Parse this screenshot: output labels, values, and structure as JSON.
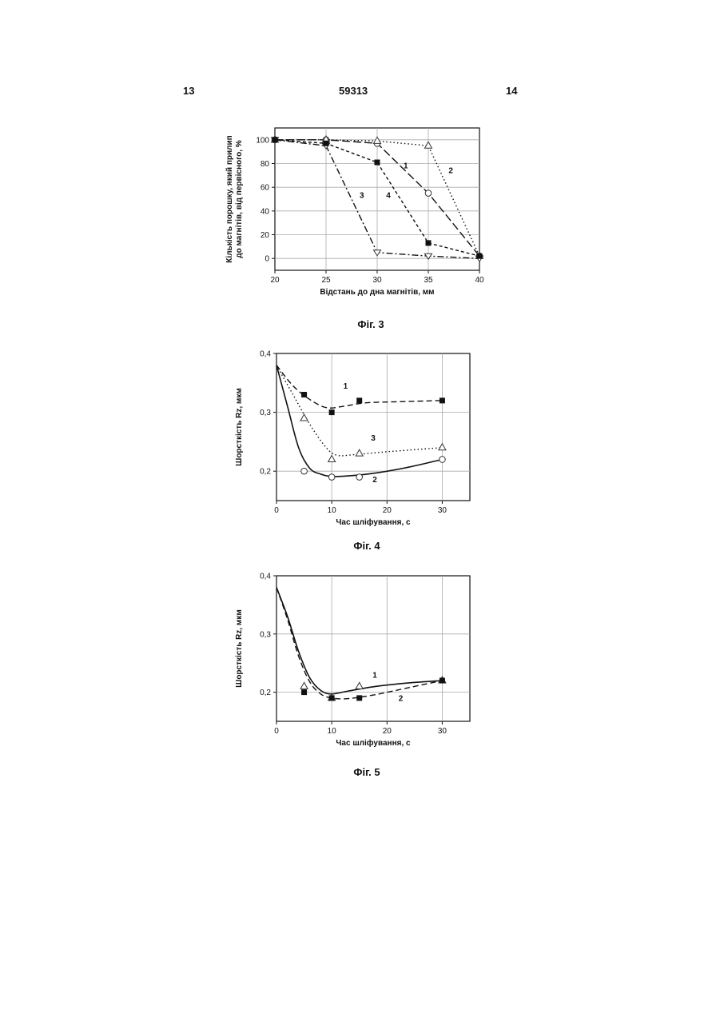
{
  "header": {
    "left": "13",
    "center": "59313",
    "right": "14"
  },
  "chart_data": [
    {
      "type": "line",
      "caption": "Фіг. 3",
      "xlabel": "Відстань до дна магнітів, мм",
      "ylabel_lines": [
        "Кількість порошку, який прилип",
        "до магнітів, від первісного, %"
      ],
      "xlim": [
        20,
        40
      ],
      "ylim": [
        -10,
        110
      ],
      "xticks": [
        20,
        25,
        30,
        35,
        40
      ],
      "yticks": [
        0,
        20,
        40,
        60,
        80,
        100
      ],
      "xtick_labels": [
        "20",
        "25",
        "30",
        "35",
        "40"
      ],
      "ytick_labels": [
        "0",
        "20",
        "40",
        "60",
        "80",
        "100"
      ],
      "grid": true,
      "series": [
        {
          "name": "1",
          "line": "M",
          "marker": "circle",
          "x": [
            20,
            25,
            30,
            35,
            40
          ],
          "y": [
            100,
            100,
            97,
            55,
            2
          ]
        },
        {
          "name": "2",
          "line": "dot",
          "marker": "triangle",
          "x": [
            20,
            25,
            30,
            35,
            40
          ],
          "y": [
            100,
            100,
            99,
            95,
            2
          ]
        },
        {
          "name": "3",
          "line": "dashdot",
          "marker": "triangle-down",
          "x": [
            20,
            25,
            30,
            35,
            40
          ],
          "y": [
            100,
            95,
            5,
            2,
            0
          ]
        },
        {
          "name": "4",
          "line": "dashdense",
          "marker": "square",
          "x": [
            20,
            25,
            30,
            35,
            40
          ],
          "y": [
            100,
            97,
            81,
            13,
            2
          ]
        }
      ],
      "curve_labels": [
        {
          "text": "1",
          "x": 32.8,
          "y": 76
        },
        {
          "text": "2",
          "x": 37.2,
          "y": 72
        },
        {
          "text": "3",
          "x": 28.5,
          "y": 51
        },
        {
          "text": "4",
          "x": 31.1,
          "y": 51
        }
      ]
    },
    {
      "type": "line",
      "caption": "Фіг. 4",
      "xlabel": "Час шліфування, с",
      "ylabel": "Шорсткість Rz, мкм",
      "xlim": [
        0,
        35
      ],
      "ylim": [
        0.15,
        0.4
      ],
      "xticks": [
        0,
        10,
        20,
        30
      ],
      "yticks": [
        0.2,
        0.3,
        0.4
      ],
      "xtick_labels": [
        "0",
        "10",
        "20",
        "30"
      ],
      "ytick_labels": [
        "0,2",
        "0,3",
        "0,4"
      ],
      "grid": true,
      "series": [
        {
          "name": "1",
          "line": "dash",
          "marker": "square",
          "points": [
            [
              5,
              0.33
            ],
            [
              10,
              0.3
            ],
            [
              15,
              0.32
            ],
            [
              30,
              0.32
            ]
          ],
          "curve": [
            [
              0,
              0.38
            ],
            [
              3,
              0.345
            ],
            [
              6,
              0.322
            ],
            [
              9,
              0.308
            ],
            [
              12,
              0.31
            ],
            [
              16,
              0.316
            ],
            [
              22,
              0.318
            ],
            [
              30,
              0.32
            ]
          ]
        },
        {
          "name": "2",
          "line": "solid",
          "marker": "circle",
          "points": [
            [
              5,
              0.2
            ],
            [
              10,
              0.19
            ],
            [
              15,
              0.19
            ],
            [
              30,
              0.22
            ]
          ],
          "curve": [
            [
              0,
              0.38
            ],
            [
              2,
              0.31
            ],
            [
              4,
              0.24
            ],
            [
              6,
              0.205
            ],
            [
              8,
              0.195
            ],
            [
              10,
              0.191
            ],
            [
              13,
              0.192
            ],
            [
              18,
              0.197
            ],
            [
              24,
              0.207
            ],
            [
              30,
              0.22
            ]
          ]
        },
        {
          "name": "3",
          "line": "dot",
          "marker": "triangle",
          "points": [
            [
              5,
              0.29
            ],
            [
              10,
              0.22
            ],
            [
              15,
              0.23
            ],
            [
              30,
              0.24
            ]
          ],
          "curve": [
            [
              0,
              0.38
            ],
            [
              3,
              0.33
            ],
            [
              6,
              0.28
            ],
            [
              9,
              0.24
            ],
            [
              11,
              0.227
            ],
            [
              14,
              0.228
            ],
            [
              20,
              0.233
            ],
            [
              30,
              0.24
            ]
          ]
        }
      ],
      "curve_labels": [
        {
          "text": "1",
          "x": 12.5,
          "y": 0.34
        },
        {
          "text": "3",
          "x": 17.5,
          "y": 0.252
        },
        {
          "text": "2",
          "x": 17.8,
          "y": 0.181
        }
      ]
    },
    {
      "type": "line",
      "caption": "Фіг. 5",
      "xlabel": "Час шліфування, с",
      "ylabel": "Шорсткість Rz, мкм",
      "xlim": [
        0,
        35
      ],
      "ylim": [
        0.15,
        0.4
      ],
      "xticks": [
        0,
        10,
        20,
        30
      ],
      "yticks": [
        0.2,
        0.3,
        0.4
      ],
      "xtick_labels": [
        "0",
        "10",
        "20",
        "30"
      ],
      "ytick_labels": [
        "0,2",
        "0,3",
        "0,4"
      ],
      "grid": true,
      "series": [
        {
          "name": "1",
          "line": "solid",
          "marker": "triangle",
          "points": [
            [
              5,
              0.21
            ],
            [
              10,
              0.19
            ],
            [
              15,
              0.21
            ],
            [
              30,
              0.22
            ]
          ],
          "curve": [
            [
              0,
              0.38
            ],
            [
              2,
              0.33
            ],
            [
              4,
              0.27
            ],
            [
              6,
              0.225
            ],
            [
              8,
              0.203
            ],
            [
              10,
              0.197
            ],
            [
              13,
              0.202
            ],
            [
              18,
              0.21
            ],
            [
              24,
              0.216
            ],
            [
              30,
              0.22
            ]
          ]
        },
        {
          "name": "2",
          "line": "dash",
          "marker": "square",
          "points": [
            [
              5,
              0.2
            ],
            [
              10,
              0.19
            ],
            [
              15,
              0.19
            ],
            [
              30,
              0.22
            ]
          ],
          "curve": [
            [
              0,
              0.38
            ],
            [
              2,
              0.325
            ],
            [
              4,
              0.262
            ],
            [
              6,
              0.218
            ],
            [
              8,
              0.197
            ],
            [
              10,
              0.19
            ],
            [
              13,
              0.189
            ],
            [
              18,
              0.196
            ],
            [
              24,
              0.208
            ],
            [
              30,
              0.22
            ]
          ]
        }
      ],
      "curve_labels": [
        {
          "text": "1",
          "x": 17.8,
          "y": 0.225
        },
        {
          "text": "2",
          "x": 22.5,
          "y": 0.185
        }
      ]
    }
  ]
}
